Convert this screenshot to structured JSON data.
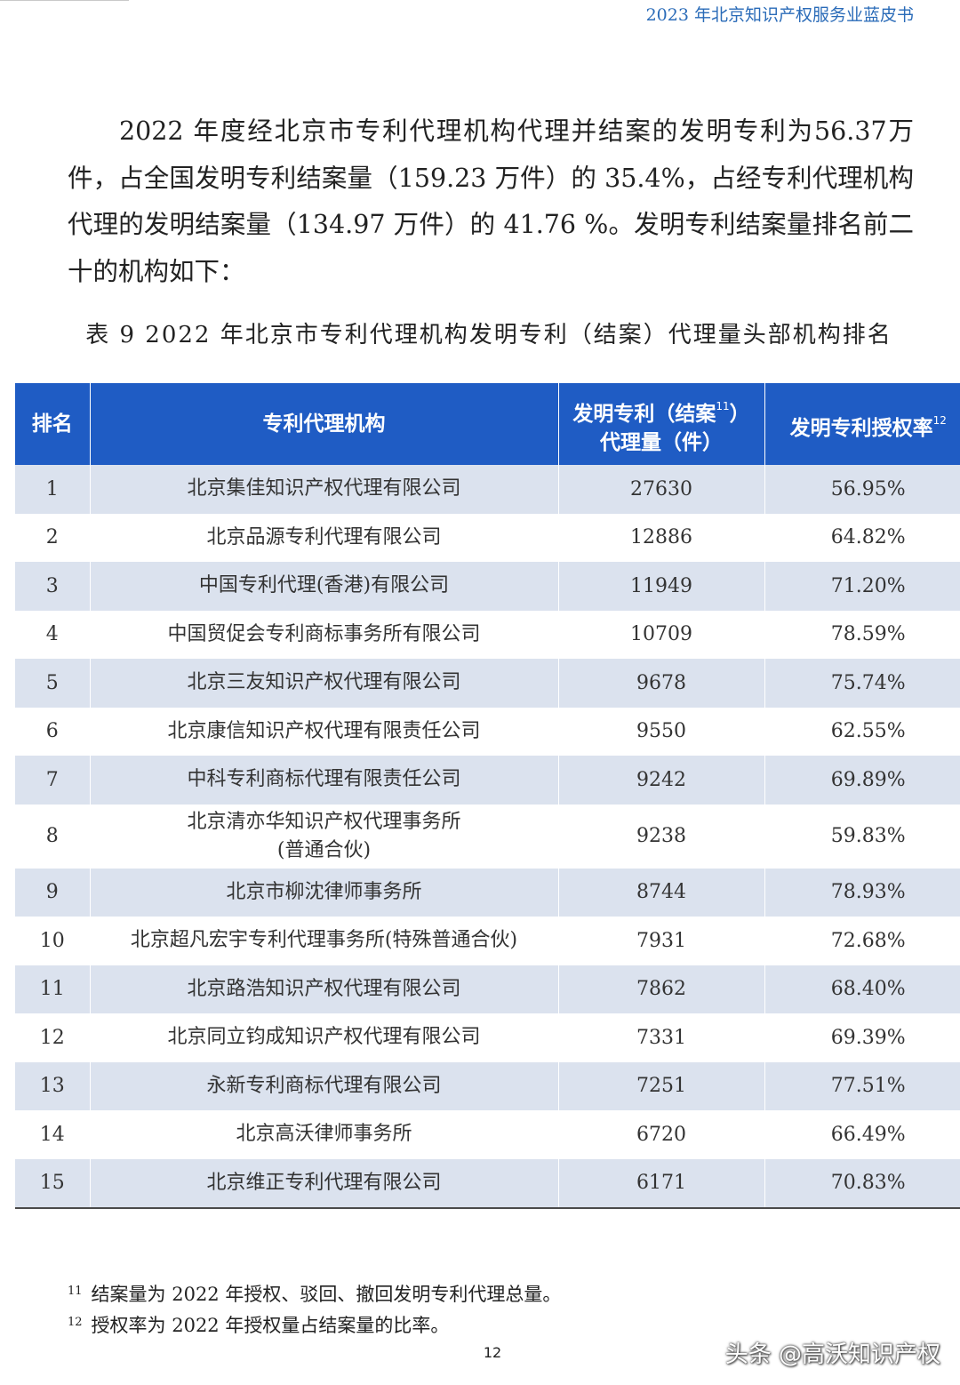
{
  "header": {
    "running_title": "2023 年北京知识产权服务业蓝皮书"
  },
  "intro": {
    "text": "2022 年度经北京市专利代理机构代理并结案的发明专利为56.37万件，占全国发明专利结案量（159.23 万件）的 35.4%，占经专利代理机构代理的发明结案量（134.97 万件）的 41.76 %。发明专利结案量排名前二十的机构如下："
  },
  "table": {
    "caption": "表 9 2022 年北京市专利代理机构发明专利（结案）代理量头部机构排名",
    "headers": {
      "rank": "排名",
      "agency": "专利代理机构",
      "volume_line1": "发明专利（结案",
      "volume_note": "11",
      "volume_line1_end": "）",
      "volume_line2": "代理量（件）",
      "rate": "发明专利授权率",
      "rate_note": "12"
    },
    "rows": [
      {
        "rank": "1",
        "name": "北京集佳知识产权代理有限公司",
        "name_sub": "",
        "volume": "27630",
        "rate": "56.95%"
      },
      {
        "rank": "2",
        "name": "北京品源专利代理有限公司",
        "name_sub": "",
        "volume": "12886",
        "rate": "64.82%"
      },
      {
        "rank": "3",
        "name": "中国专利代理(香港)有限公司",
        "name_sub": "",
        "volume": "11949",
        "rate": "71.20%"
      },
      {
        "rank": "4",
        "name": "中国贸促会专利商标事务所有限公司",
        "name_sub": "",
        "volume": "10709",
        "rate": "78.59%"
      },
      {
        "rank": "5",
        "name": "北京三友知识产权代理有限公司",
        "name_sub": "",
        "volume": "9678",
        "rate": "75.74%"
      },
      {
        "rank": "6",
        "name": "北京康信知识产权代理有限责任公司",
        "name_sub": "",
        "volume": "9550",
        "rate": "62.55%"
      },
      {
        "rank": "7",
        "name": "中科专利商标代理有限责任公司",
        "name_sub": "",
        "volume": "9242",
        "rate": "69.89%"
      },
      {
        "rank": "8",
        "name": "北京清亦华知识产权代理事务所",
        "name_sub": "(普通合伙)",
        "volume": "9238",
        "rate": "59.83%"
      },
      {
        "rank": "9",
        "name": "北京市柳沈律师事务所",
        "name_sub": "",
        "volume": "8744",
        "rate": "78.93%"
      },
      {
        "rank": "10",
        "name": "北京超凡宏宇专利代理事务所(特殊普通合伙)",
        "name_sub": "",
        "volume": "7931",
        "rate": "72.68%"
      },
      {
        "rank": "11",
        "name": "北京路浩知识产权代理有限公司",
        "name_sub": "",
        "volume": "7862",
        "rate": "68.40%"
      },
      {
        "rank": "12",
        "name": "北京同立钧成知识产权代理有限公司",
        "name_sub": "",
        "volume": "7331",
        "rate": "69.39%"
      },
      {
        "rank": "13",
        "name": "永新专利商标代理有限公司",
        "name_sub": "",
        "volume": "7251",
        "rate": "77.51%"
      },
      {
        "rank": "14",
        "name": "北京高沃律师事务所",
        "name_sub": "",
        "volume": "6720",
        "rate": "66.49%"
      },
      {
        "rank": "15",
        "name": "北京维正专利代理有限公司",
        "name_sub": "",
        "volume": "6171",
        "rate": "70.83%"
      }
    ]
  },
  "footnotes": [
    {
      "num": "11",
      "text": "结案量为 2022 年授权、驳回、撤回发明专利代理总量。"
    },
    {
      "num": "12",
      "text": "授权率为 2022 年授权量占结案量的比率。"
    }
  ],
  "page_number": "12",
  "watermark": "头条 @高沃知识产权",
  "colors": {
    "header_bg": "#1f5cc4",
    "stripe": "#dbe2ee",
    "running_title": "#2a6bb8"
  }
}
